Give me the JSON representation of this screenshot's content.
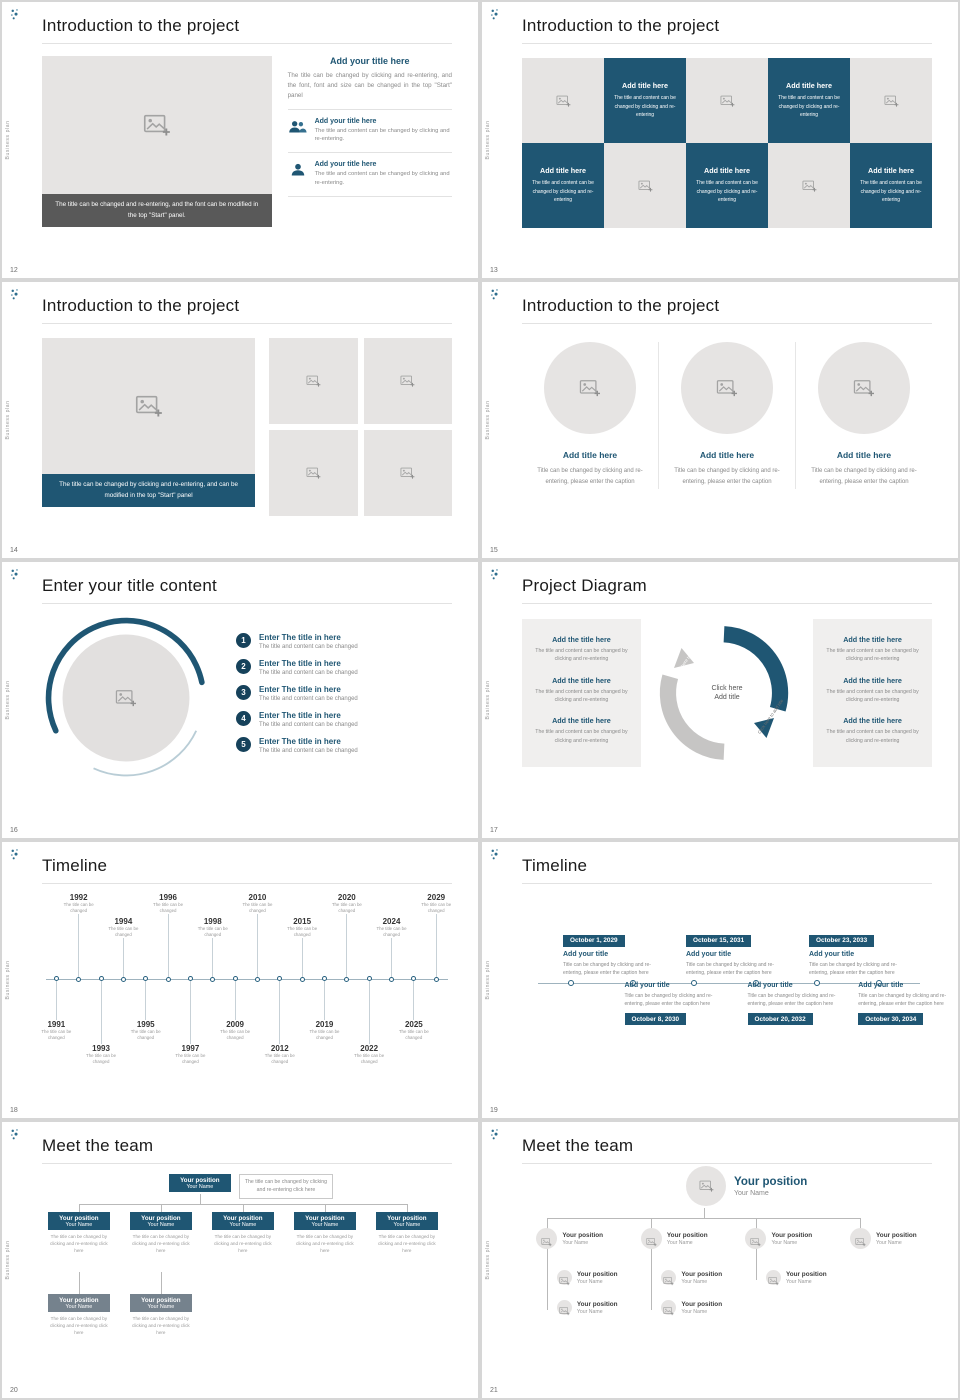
{
  "colors": {
    "accent_navy": "#1f5673",
    "dark_navy": "#16425b",
    "caption_bar_gray": "#595959",
    "placeholder_gray": "#e6e4e3",
    "text_gray": "#8a8a8a"
  },
  "common": {
    "vertical_text": "Business plan"
  },
  "slides": {
    "s12": {
      "number": "12",
      "title": "Introduction to the project",
      "image_caption": "The title can be changed and re-entering, and the font can be modified in the top \"Start\" panel.",
      "heading": "Add your title here",
      "paragraph": "The title can be changed by clicking and re-entering, and the font, font and size can be changed in the top \"Start\" panel",
      "items": [
        {
          "title": "Add your title here",
          "text": "The title and content can be changed by clicking and re-entering."
        },
        {
          "title": "Add your title here",
          "text": "The title and content can be changed by clicking and re-entering."
        }
      ]
    },
    "s13": {
      "number": "13",
      "title": "Introduction to the project",
      "tile_title": "Add title here",
      "tile_text": "The title and content can be changed by clicking and re-entering"
    },
    "s14": {
      "number": "14",
      "title": "Introduction to the project",
      "image_caption": "The title can be changed by clicking and re-entering, and can be modified in the top \"Start\" panel"
    },
    "s15": {
      "number": "15",
      "title": "Introduction to the project",
      "item_title": "Add title here",
      "item_text": "Title can be changed by clicking and re-entering, please enter the caption"
    },
    "s16": {
      "number": "16",
      "title": "Enter your title content",
      "nums": [
        "1",
        "2",
        "3",
        "4",
        "5"
      ],
      "item_title": "Enter The title in here",
      "item_text": "The title and content can be changed"
    },
    "s17": {
      "number": "17",
      "title": "Project Diagram",
      "block_title": "Add the title here",
      "block_text": "The title and content can be changed by clicking and re-entering",
      "center_line1": "Click here",
      "center_line2": "Add title",
      "arc_label": "Click here to add title"
    },
    "s18": {
      "number": "18",
      "title": "Timeline",
      "caption": "The title can be changed",
      "years_top": [
        "1992",
        "1994",
        "1996",
        "1998",
        "2010",
        "2015",
        "2020",
        "2024",
        "2029"
      ],
      "years_bottom": [
        "1991",
        "1993",
        "1995",
        "1997",
        "2009",
        "2012",
        "2019",
        "2022",
        "2025"
      ]
    },
    "s19": {
      "number": "19",
      "title": "Timeline",
      "entry_title": "Add your title",
      "entry_text": "Title can be changed by clicking and re-entering, please enter the caption here",
      "dates_top": [
        "October 1, 2029",
        "October 15, 2031",
        "October 23, 2033"
      ],
      "dates_bottom": [
        "October 8, 2030",
        "October 20, 2032",
        "October 30, 2034"
      ]
    },
    "s20": {
      "number": "20",
      "title": "Meet the team",
      "position": "Your position",
      "name": "Your Name",
      "note": "The title can be changed by clicking and re-entering click here",
      "caption": "The title can be changed by clicking and re-entering click here"
    },
    "s21": {
      "number": "21",
      "title": "Meet the team",
      "position": "Your position",
      "name": "Your Name"
    }
  }
}
